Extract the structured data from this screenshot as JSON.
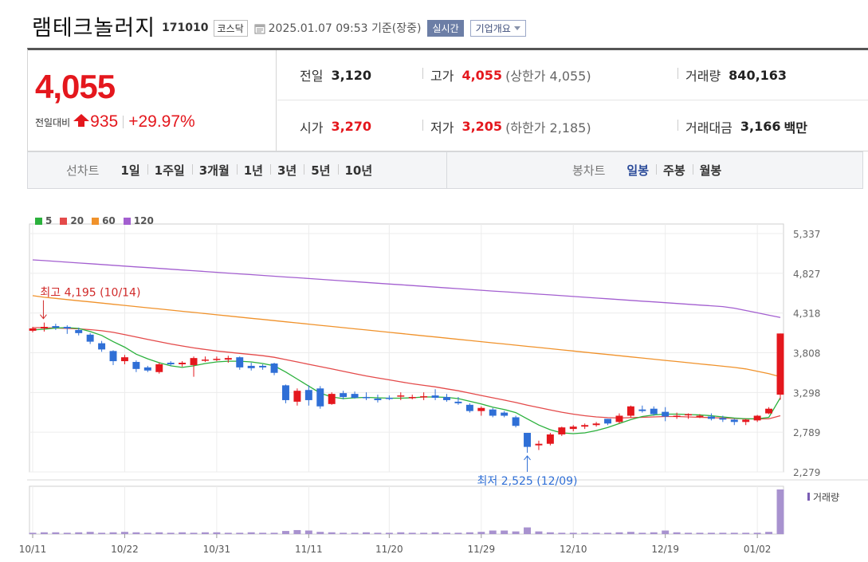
{
  "header": {
    "company_name": "램테크놀러지",
    "code": "171010",
    "market": "코스닥",
    "timestamp": "2025.01.07 09:53  기준(장중)",
    "realtime_label": "실시간",
    "corp_info_label": "기업개요"
  },
  "quote": {
    "price": "4,055",
    "change_label": "전일대비",
    "change_amount": "935",
    "change_pct": "+29.97%",
    "prev_close_label": "전일",
    "prev_close": "3,120",
    "high_label": "고가",
    "high": "4,055",
    "upper_limit": "(상한가 4,055)",
    "volume_label": "거래량",
    "volume": "840,163",
    "open_label": "시가",
    "open": "3,270",
    "low_label": "저가",
    "low": "3,205",
    "lower_limit": "(하한가 2,185)",
    "amount_label": "거래대금",
    "amount": "3,166",
    "amount_unit": "백만"
  },
  "tabs": {
    "line_chart_label": "선차트",
    "line_periods": [
      "1일",
      "1주일",
      "3개월",
      "1년",
      "3년",
      "5년",
      "10년"
    ],
    "candle_chart_label": "봉차트",
    "candle_periods": [
      "일봉",
      "주봉",
      "월봉"
    ],
    "active_candle": "일봉"
  },
  "colors": {
    "up": "#e4171d",
    "down": "#2f6fd6",
    "ma5": "#2bb13c",
    "ma20": "#e44a4a",
    "ma60": "#f0922b",
    "ma120": "#a35fd0",
    "volume": "#a892cf"
  },
  "chart_data": {
    "type": "candlestick",
    "title": "",
    "ylim": [
      2279,
      5337
    ],
    "y_ticks": [
      "5,337",
      "4,827",
      "4,318",
      "3,808",
      "3,298",
      "2,789",
      "2,279"
    ],
    "x_ticks": [
      "10/11",
      "10/22",
      "10/31",
      "11/11",
      "11/20",
      "11/29",
      "12/10",
      "12/19",
      "01/02"
    ],
    "legend": [
      {
        "name": "5",
        "color": "#2bb13c"
      },
      {
        "name": "20",
        "color": "#e44a4a"
      },
      {
        "name": "60",
        "color": "#f0922b"
      },
      {
        "name": "120",
        "color": "#a35fd0"
      }
    ],
    "volume_label": "거래량",
    "annotations": {
      "high": "최고 4,195 (10/14)",
      "low": "최저 2,525 (12/09)"
    },
    "candles": [
      [
        4090,
        4140,
        4070,
        4120
      ],
      [
        4120,
        4195,
        4080,
        4140
      ],
      [
        4150,
        4180,
        4100,
        4130
      ],
      [
        4140,
        4160,
        4050,
        4120
      ],
      [
        4100,
        4130,
        4030,
        4060
      ],
      [
        4040,
        4060,
        3920,
        3950
      ],
      [
        3930,
        3960,
        3820,
        3850
      ],
      [
        3830,
        3840,
        3650,
        3700
      ],
      [
        3700,
        3780,
        3660,
        3750
      ],
      [
        3690,
        3710,
        3560,
        3600
      ],
      [
        3620,
        3640,
        3560,
        3580
      ],
      [
        3560,
        3680,
        3540,
        3660
      ],
      [
        3680,
        3700,
        3640,
        3660
      ],
      [
        3660,
        3700,
        3630,
        3680
      ],
      [
        3650,
        3760,
        3500,
        3740
      ],
      [
        3710,
        3760,
        3690,
        3720
      ],
      [
        3720,
        3760,
        3700,
        3730
      ],
      [
        3720,
        3770,
        3680,
        3740
      ],
      [
        3750,
        3760,
        3590,
        3620
      ],
      [
        3640,
        3680,
        3580,
        3610
      ],
      [
        3640,
        3660,
        3590,
        3620
      ],
      [
        3670,
        3680,
        3520,
        3550
      ],
      [
        3390,
        3400,
        3160,
        3200
      ],
      [
        3180,
        3350,
        3130,
        3320
      ],
      [
        3330,
        3390,
        3130,
        3200
      ],
      [
        3350,
        3380,
        3090,
        3120
      ],
      [
        3150,
        3300,
        3140,
        3280
      ],
      [
        3290,
        3320,
        3210,
        3240
      ],
      [
        3280,
        3310,
        3220,
        3230
      ],
      [
        3240,
        3300,
        3200,
        3230
      ],
      [
        3220,
        3270,
        3170,
        3200
      ],
      [
        3230,
        3260,
        3200,
        3220
      ],
      [
        3250,
        3300,
        3200,
        3260
      ],
      [
        3230,
        3270,
        3210,
        3240
      ],
      [
        3240,
        3300,
        3200,
        3250
      ],
      [
        3260,
        3340,
        3200,
        3230
      ],
      [
        3240,
        3280,
        3180,
        3200
      ],
      [
        3180,
        3240,
        3140,
        3160
      ],
      [
        3140,
        3160,
        3040,
        3060
      ],
      [
        3060,
        3120,
        3000,
        3100
      ],
      [
        3080,
        3100,
        2980,
        3000
      ],
      [
        3040,
        3060,
        2980,
        3000
      ],
      [
        2980,
        3000,
        2850,
        2870
      ],
      [
        2780,
        2780,
        2525,
        2600
      ],
      [
        2620,
        2680,
        2560,
        2640
      ],
      [
        2640,
        2780,
        2620,
        2760
      ],
      [
        2760,
        2860,
        2740,
        2850
      ],
      [
        2830,
        2880,
        2800,
        2860
      ],
      [
        2860,
        2900,
        2830,
        2880
      ],
      [
        2880,
        2920,
        2860,
        2900
      ],
      [
        2960,
        2960,
        2880,
        2900
      ],
      [
        2920,
        3030,
        2900,
        3000
      ],
      [
        3000,
        3130,
        2980,
        3120
      ],
      [
        3080,
        3130,
        3040,
        3060
      ],
      [
        3090,
        3120,
        3000,
        3020
      ],
      [
        3050,
        3110,
        2930,
        2990
      ],
      [
        2990,
        3040,
        2960,
        3000
      ],
      [
        3010,
        3030,
        2960,
        3020
      ],
      [
        3000,
        3020,
        2970,
        3000
      ],
      [
        2990,
        3030,
        2940,
        2960
      ],
      [
        2970,
        3000,
        2920,
        2950
      ],
      [
        2950,
        2960,
        2880,
        2920
      ],
      [
        2920,
        2960,
        2880,
        2950
      ],
      [
        2940,
        3010,
        2920,
        3000
      ],
      [
        3030,
        3110,
        3020,
        3090
      ],
      [
        3270,
        4055,
        3205,
        4055
      ]
    ],
    "ma5": [
      4100,
      4110,
      4125,
      4130,
      4120,
      4080,
      4030,
      3950,
      3880,
      3790,
      3730,
      3680,
      3640,
      3620,
      3640,
      3670,
      3690,
      3700,
      3700,
      3690,
      3670,
      3640,
      3560,
      3470,
      3380,
      3290,
      3240,
      3220,
      3230,
      3235,
      3230,
      3225,
      3225,
      3230,
      3240,
      3240,
      3235,
      3220,
      3185,
      3150,
      3110,
      3080,
      3040,
      2960,
      2880,
      2820,
      2780,
      2770,
      2780,
      2810,
      2850,
      2900,
      2950,
      2990,
      3010,
      3020,
      3020,
      3015,
      3010,
      3000,
      2985,
      2970,
      2960,
      2960,
      2980,
      3230
    ],
    "ma20": [
      4130,
      4130,
      4125,
      4120,
      4115,
      4105,
      4090,
      4070,
      4040,
      4010,
      3980,
      3950,
      3920,
      3895,
      3870,
      3850,
      3830,
      3815,
      3800,
      3785,
      3770,
      3750,
      3720,
      3690,
      3660,
      3630,
      3600,
      3570,
      3540,
      3510,
      3485,
      3460,
      3435,
      3410,
      3390,
      3370,
      3345,
      3320,
      3290,
      3260,
      3230,
      3200,
      3170,
      3135,
      3105,
      3075,
      3045,
      3020,
      3000,
      2985,
      2975,
      2970,
      2975,
      2980,
      2985,
      2990,
      2990,
      2985,
      2980,
      2975,
      2970,
      2965,
      2960,
      2958,
      2960,
      3000
    ],
    "ma60": [
      4540,
      4520,
      4505,
      4490,
      4475,
      4460,
      4445,
      4430,
      4415,
      4400,
      4385,
      4370,
      4355,
      4340,
      4325,
      4310,
      4295,
      4280,
      4265,
      4250,
      4235,
      4220,
      4205,
      4190,
      4175,
      4160,
      4145,
      4130,
      4115,
      4100,
      4085,
      4070,
      4055,
      4040,
      4025,
      4010,
      3995,
      3980,
      3965,
      3950,
      3935,
      3920,
      3905,
      3890,
      3875,
      3860,
      3845,
      3830,
      3815,
      3800,
      3785,
      3770,
      3755,
      3740,
      3725,
      3710,
      3695,
      3680,
      3665,
      3650,
      3635,
      3620,
      3600,
      3570,
      3540,
      3500
    ],
    "ma120": [
      5000,
      4990,
      4980,
      4970,
      4960,
      4950,
      4940,
      4930,
      4920,
      4910,
      4900,
      4890,
      4880,
      4870,
      4860,
      4850,
      4840,
      4830,
      4820,
      4810,
      4800,
      4790,
      4780,
      4770,
      4760,
      4750,
      4740,
      4730,
      4720,
      4710,
      4700,
      4690,
      4680,
      4670,
      4660,
      4650,
      4640,
      4630,
      4620,
      4610,
      4600,
      4590,
      4580,
      4570,
      4560,
      4550,
      4540,
      4530,
      4520,
      4510,
      4500,
      4490,
      4480,
      4470,
      4460,
      4450,
      4440,
      4430,
      4420,
      4410,
      4400,
      4380,
      4350,
      4320,
      4290,
      4260
    ],
    "volumes": [
      3,
      4,
      4,
      3,
      4,
      5,
      3,
      4,
      5,
      4,
      3,
      4,
      3,
      4,
      3,
      4,
      4,
      3,
      3,
      4,
      3,
      3,
      7,
      9,
      8,
      5,
      4,
      3,
      3,
      4,
      3,
      3,
      4,
      3,
      3,
      4,
      3,
      3,
      4,
      5,
      8,
      8,
      6,
      15,
      6,
      4,
      3,
      3,
      3,
      3,
      3,
      4,
      5,
      3,
      4,
      8,
      4,
      3,
      3,
      3,
      3,
      3,
      3,
      3,
      5,
      100
    ]
  }
}
